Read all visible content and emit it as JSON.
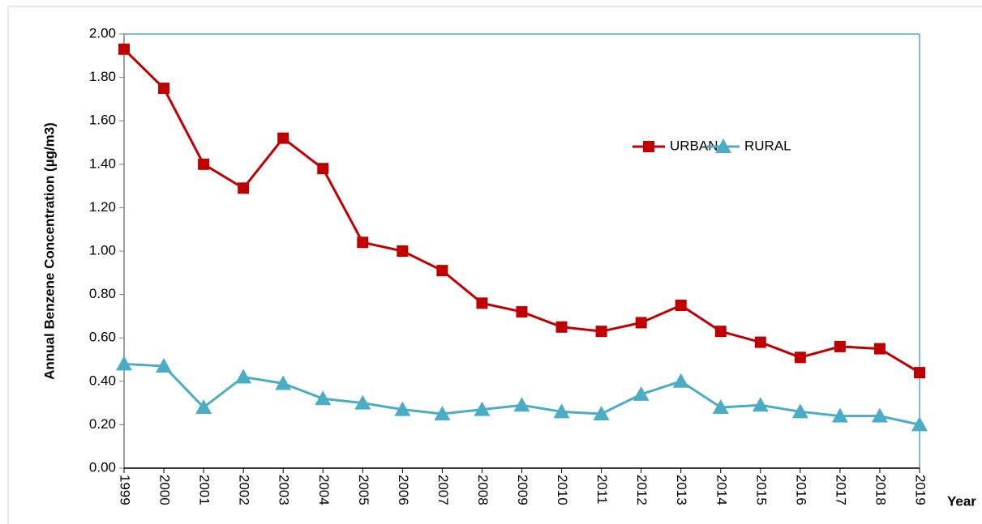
{
  "chart_data": {
    "type": "line",
    "y_label": "Annual Benzene Concentration (µg/m3)",
    "x_label": "Year",
    "categories": [
      "1999",
      "2000",
      "2001",
      "2002",
      "2003",
      "2004",
      "2005",
      "2006",
      "2007",
      "2008",
      "2009",
      "2010",
      "2011",
      "2012",
      "2013",
      "2014",
      "2015",
      "2016",
      "2017",
      "2018",
      "2019"
    ],
    "series": [
      {
        "name": "URBAN",
        "color": "#c00000",
        "marker": "square",
        "values": [
          1.93,
          1.75,
          1.4,
          1.29,
          1.52,
          1.38,
          1.04,
          1.0,
          0.91,
          0.76,
          0.72,
          0.65,
          0.63,
          0.67,
          0.75,
          0.63,
          0.58,
          0.51,
          0.56,
          0.55,
          0.44
        ]
      },
      {
        "name": "RURAL",
        "color": "#4bacc6",
        "marker": "triangle",
        "values": [
          0.48,
          0.47,
          0.28,
          0.42,
          0.39,
          0.32,
          0.3,
          0.27,
          0.25,
          0.27,
          0.29,
          0.26,
          0.25,
          0.34,
          0.4,
          0.28,
          0.29,
          0.26,
          0.24,
          0.24,
          0.2
        ]
      }
    ],
    "ylim": [
      0,
      2
    ],
    "yticks": [
      {
        "value": 0,
        "label": "0.00"
      },
      {
        "value": 0.2,
        "label": "0.20"
      },
      {
        "value": 0.4,
        "label": "0.40"
      },
      {
        "value": 0.6,
        "label": "0.60"
      },
      {
        "value": 0.8,
        "label": "0.80"
      },
      {
        "value": 1,
        "label": "1.00"
      },
      {
        "value": 1.2,
        "label": "1.20"
      },
      {
        "value": 1.4,
        "label": "1.40"
      },
      {
        "value": 1.6,
        "label": "1.60"
      },
      {
        "value": 1.8,
        "label": "1.80"
      },
      {
        "value": 2,
        "label": "2.00"
      }
    ],
    "grid": false
  }
}
